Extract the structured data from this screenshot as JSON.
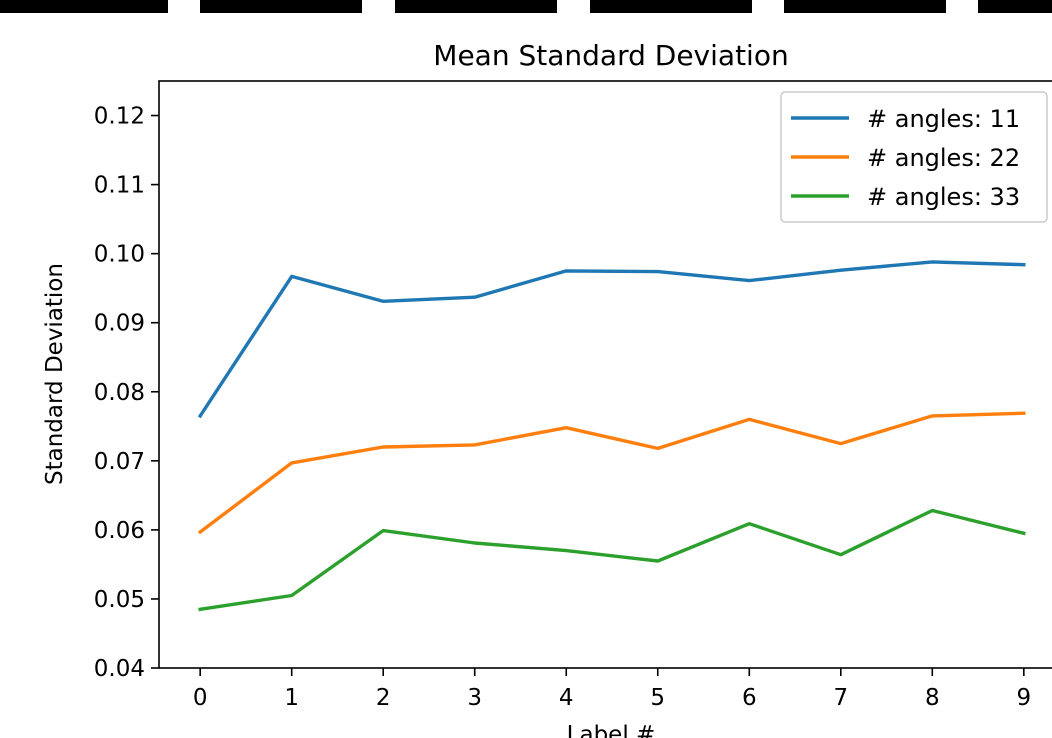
{
  "chart_data": {
    "type": "line",
    "title": "Mean Standard Deviation",
    "xlabel": "Label #",
    "ylabel": "Standard Deviation",
    "x": [
      0,
      1,
      2,
      3,
      4,
      5,
      6,
      7,
      8,
      9
    ],
    "xlim": [
      -0.45,
      9.45
    ],
    "ylim": [
      0.04,
      0.125
    ],
    "xticks": [
      0,
      1,
      2,
      3,
      4,
      5,
      6,
      7,
      8,
      9
    ],
    "yticks": [
      0.04,
      0.05,
      0.06,
      0.07,
      0.08,
      0.09,
      0.1,
      0.11,
      0.12
    ],
    "ytick_labels": [
      "0.04",
      "0.05",
      "0.06",
      "0.07",
      "0.08",
      "0.09",
      "0.10",
      "0.11",
      "0.12"
    ],
    "grid": false,
    "legend_position": "top-right",
    "series": [
      {
        "name": "# angles: 11",
        "color": "#1f77b4",
        "values": [
          0.0765,
          0.0967,
          0.0931,
          0.0937,
          0.0975,
          0.0974,
          0.0961,
          0.0976,
          0.0988,
          0.0984
        ]
      },
      {
        "name": "# angles: 22",
        "color": "#ff7f0e",
        "values": [
          0.0597,
          0.0697,
          0.072,
          0.0723,
          0.0748,
          0.0718,
          0.076,
          0.0725,
          0.0765,
          0.0769
        ]
      },
      {
        "name": "# angles: 33",
        "color": "#2ca02c",
        "values": [
          0.0485,
          0.0505,
          0.0599,
          0.0581,
          0.057,
          0.0555,
          0.0609,
          0.0564,
          0.0628,
          0.0595
        ]
      }
    ]
  }
}
